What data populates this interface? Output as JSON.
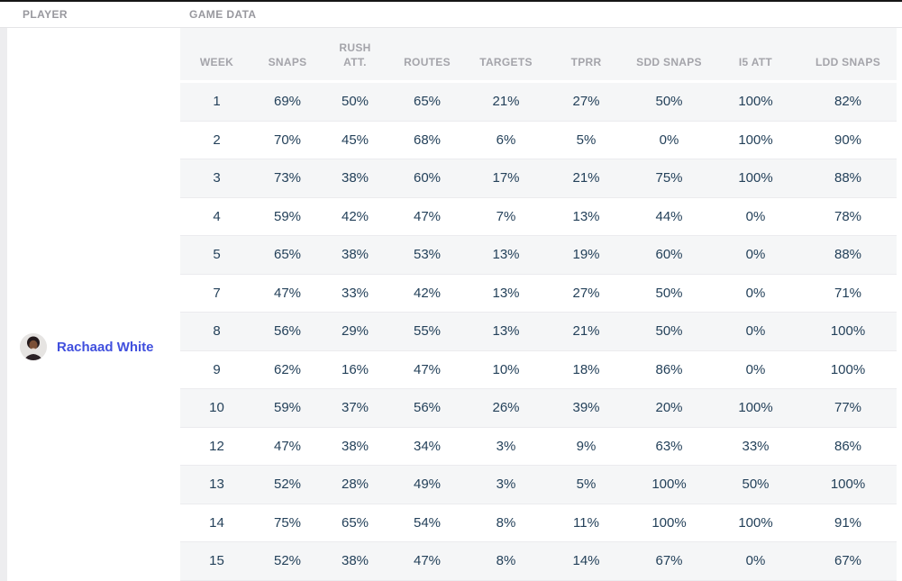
{
  "header": {
    "player_label": "PLAYER",
    "game_data_label": "GAME DATA"
  },
  "player": {
    "name": "Rachaad White"
  },
  "table": {
    "columns": [
      {
        "key": "week",
        "label": "WEEK"
      },
      {
        "key": "snaps",
        "label": "SNAPS"
      },
      {
        "key": "rush_att",
        "label": "RUSH ATT."
      },
      {
        "key": "routes",
        "label": "ROUTES"
      },
      {
        "key": "targets",
        "label": "TARGETS"
      },
      {
        "key": "tprr",
        "label": "TPRR"
      },
      {
        "key": "sdd_snaps",
        "label": "SDD SNAPS"
      },
      {
        "key": "i5_att",
        "label": "I5 ATT"
      },
      {
        "key": "ldd_snaps",
        "label": "LDD SNAPS"
      }
    ],
    "rows": [
      {
        "week": "1",
        "snaps": "69%",
        "rush_att": "50%",
        "routes": "65%",
        "targets": "21%",
        "tprr": "27%",
        "sdd_snaps": "50%",
        "i5_att": "100%",
        "ldd_snaps": "82%"
      },
      {
        "week": "2",
        "snaps": "70%",
        "rush_att": "45%",
        "routes": "68%",
        "targets": "6%",
        "tprr": "5%",
        "sdd_snaps": "0%",
        "i5_att": "100%",
        "ldd_snaps": "90%"
      },
      {
        "week": "3",
        "snaps": "73%",
        "rush_att": "38%",
        "routes": "60%",
        "targets": "17%",
        "tprr": "21%",
        "sdd_snaps": "75%",
        "i5_att": "100%",
        "ldd_snaps": "88%"
      },
      {
        "week": "4",
        "snaps": "59%",
        "rush_att": "42%",
        "routes": "47%",
        "targets": "7%",
        "tprr": "13%",
        "sdd_snaps": "44%",
        "i5_att": "0%",
        "ldd_snaps": "78%"
      },
      {
        "week": "5",
        "snaps": "65%",
        "rush_att": "38%",
        "routes": "53%",
        "targets": "13%",
        "tprr": "19%",
        "sdd_snaps": "60%",
        "i5_att": "0%",
        "ldd_snaps": "88%"
      },
      {
        "week": "7",
        "snaps": "47%",
        "rush_att": "33%",
        "routes": "42%",
        "targets": "13%",
        "tprr": "27%",
        "sdd_snaps": "50%",
        "i5_att": "0%",
        "ldd_snaps": "71%"
      },
      {
        "week": "8",
        "snaps": "56%",
        "rush_att": "29%",
        "routes": "55%",
        "targets": "13%",
        "tprr": "21%",
        "sdd_snaps": "50%",
        "i5_att": "0%",
        "ldd_snaps": "100%"
      },
      {
        "week": "9",
        "snaps": "62%",
        "rush_att": "16%",
        "routes": "47%",
        "targets": "10%",
        "tprr": "18%",
        "sdd_snaps": "86%",
        "i5_att": "0%",
        "ldd_snaps": "100%"
      },
      {
        "week": "10",
        "snaps": "59%",
        "rush_att": "37%",
        "routes": "56%",
        "targets": "26%",
        "tprr": "39%",
        "sdd_snaps": "20%",
        "i5_att": "100%",
        "ldd_snaps": "77%"
      },
      {
        "week": "12",
        "snaps": "47%",
        "rush_att": "38%",
        "routes": "34%",
        "targets": "3%",
        "tprr": "9%",
        "sdd_snaps": "63%",
        "i5_att": "33%",
        "ldd_snaps": "86%"
      },
      {
        "week": "13",
        "snaps": "52%",
        "rush_att": "28%",
        "routes": "49%",
        "targets": "3%",
        "tprr": "5%",
        "sdd_snaps": "100%",
        "i5_att": "50%",
        "ldd_snaps": "100%"
      },
      {
        "week": "14",
        "snaps": "75%",
        "rush_att": "65%",
        "routes": "54%",
        "targets": "8%",
        "tprr": "11%",
        "sdd_snaps": "100%",
        "i5_att": "100%",
        "ldd_snaps": "91%"
      },
      {
        "week": "15",
        "snaps": "52%",
        "rush_att": "38%",
        "routes": "47%",
        "targets": "8%",
        "tprr": "14%",
        "sdd_snaps": "67%",
        "i5_att": "0%",
        "ldd_snaps": "67%"
      }
    ]
  },
  "colors": {
    "link_blue": "#4150de",
    "data_text": "#24415a",
    "header_text": "#a4a4aa",
    "row_stripe": "#f5f6f7"
  }
}
